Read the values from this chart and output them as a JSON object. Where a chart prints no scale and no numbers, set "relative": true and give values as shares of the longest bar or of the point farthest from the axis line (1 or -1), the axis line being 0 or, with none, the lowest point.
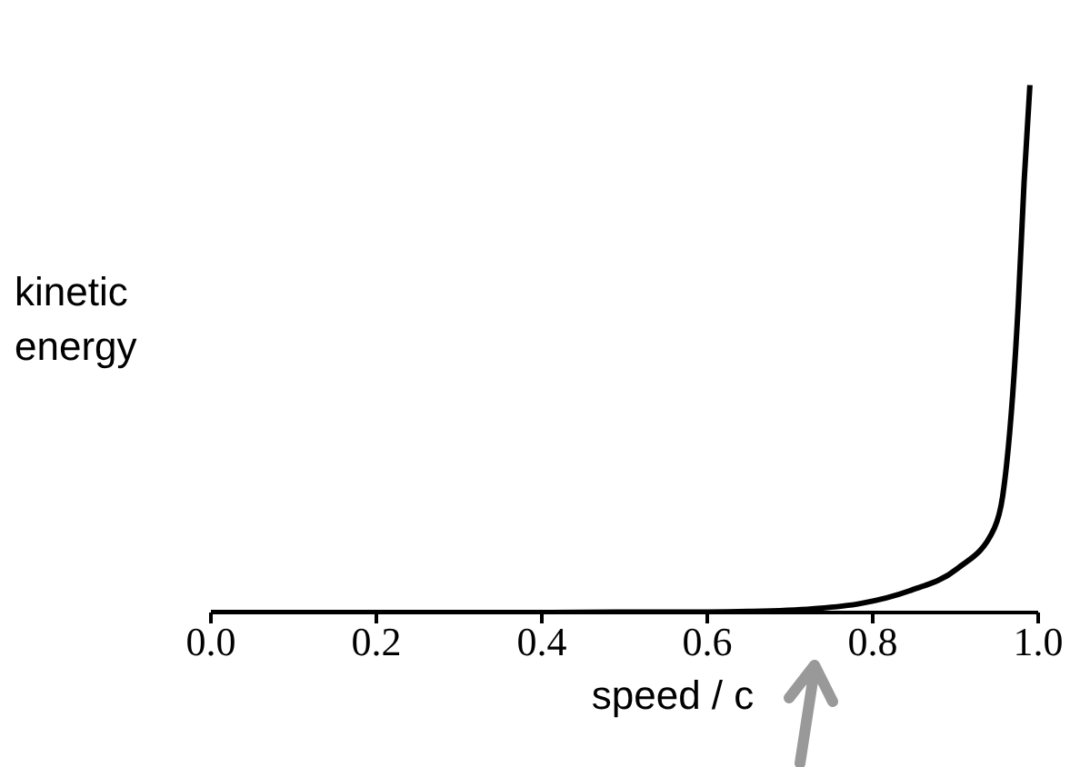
{
  "chart_data": {
    "type": "line",
    "xlabel": "speed / c",
    "ylabel": "kinetic energy",
    "relative": true,
    "x": [
      0.0,
      0.1,
      0.2,
      0.3,
      0.4,
      0.5,
      0.6,
      0.65,
      0.727,
      0.785,
      0.844,
      0.902,
      0.947,
      0.957,
      0.976,
      0.983,
      0.99
    ],
    "series": [
      {
        "color": "#000000",
        "values": [
          0,
          0,
          0,
          0,
          0,
          0.001,
          0.001,
          0.002,
          0.007,
          0.017,
          0.041,
          0.083,
          0.16,
          0.22,
          0.586,
          0.817,
          1
        ]
      }
    ],
    "xlim": [
      0.0,
      1.0
    ],
    "xticks": [
      {
        "value": 0,
        "label": "0.0"
      },
      0.2,
      0.4,
      0.6,
      0.8,
      {
        "value": 1,
        "label": "1.0"
      }
    ],
    "grid": false,
    "legend": false,
    "marker": "none",
    "line_style": "solid"
  }
}
